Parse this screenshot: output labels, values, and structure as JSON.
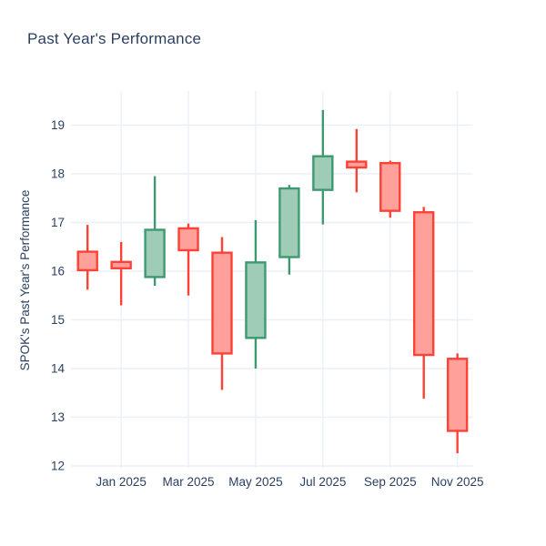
{
  "title": "Past Year's Performance",
  "chart_data": {
    "type": "candlestick",
    "title": "Past Year's Performance",
    "xlabel": "",
    "ylabel": "SPOK's Past Year's Performance",
    "legend": null,
    "grid": true,
    "y_ticks": [
      12,
      13,
      14,
      15,
      16,
      17,
      18,
      19
    ],
    "y_range": [
      11.95,
      19.7
    ],
    "x_tick_labels": [
      "Jan 2025",
      "Mar 2025",
      "May 2025",
      "Jul 2025",
      "Sep 2025",
      "Nov 2025"
    ],
    "categories": [
      "Dec 2024",
      "Jan 2025",
      "Feb 2025",
      "Mar 2025",
      "Apr 2025",
      "May 2025",
      "Jun 2025",
      "Jul 2025",
      "Aug 2025",
      "Sep 2025",
      "Oct 2025",
      "Nov 2025"
    ],
    "candles": [
      {
        "month": "Dec 2024",
        "open": 16.4,
        "high": 16.95,
        "low": 15.62,
        "close": 16.02
      },
      {
        "month": "Jan 2025",
        "open": 16.19,
        "high": 16.6,
        "low": 15.3,
        "close": 16.06
      },
      {
        "month": "Feb 2025",
        "open": 15.88,
        "high": 17.95,
        "low": 15.7,
        "close": 16.85
      },
      {
        "month": "Mar 2025",
        "open": 16.88,
        "high": 16.98,
        "low": 15.5,
        "close": 16.43
      },
      {
        "month": "Apr 2025",
        "open": 16.38,
        "high": 16.7,
        "low": 13.56,
        "close": 14.31
      },
      {
        "month": "May 2025",
        "open": 14.63,
        "high": 17.05,
        "low": 14.0,
        "close": 16.18
      },
      {
        "month": "Jun 2025",
        "open": 16.29,
        "high": 17.77,
        "low": 15.93,
        "close": 17.7
      },
      {
        "month": "Jul 2025",
        "open": 17.67,
        "high": 19.31,
        "low": 16.96,
        "close": 18.36
      },
      {
        "month": "Aug 2025",
        "open": 18.25,
        "high": 18.92,
        "low": 17.62,
        "close": 18.13
      },
      {
        "month": "Sep 2025",
        "open": 18.22,
        "high": 18.27,
        "low": 17.1,
        "close": 17.24
      },
      {
        "month": "Oct 2025",
        "open": 17.21,
        "high": 17.32,
        "low": 13.38,
        "close": 14.28
      },
      {
        "month": "Nov 2025",
        "open": 14.2,
        "high": 14.31,
        "low": 12.26,
        "close": 12.72
      }
    ],
    "colors": {
      "increasing_line": "#3D9970",
      "increasing_fill": "#9ECCB7",
      "decreasing_line": "#FF4136",
      "decreasing_fill": "#FFA09B",
      "gridline": "#EBF0F8",
      "text": "#2a3f5f",
      "background": "#ffffff"
    }
  }
}
